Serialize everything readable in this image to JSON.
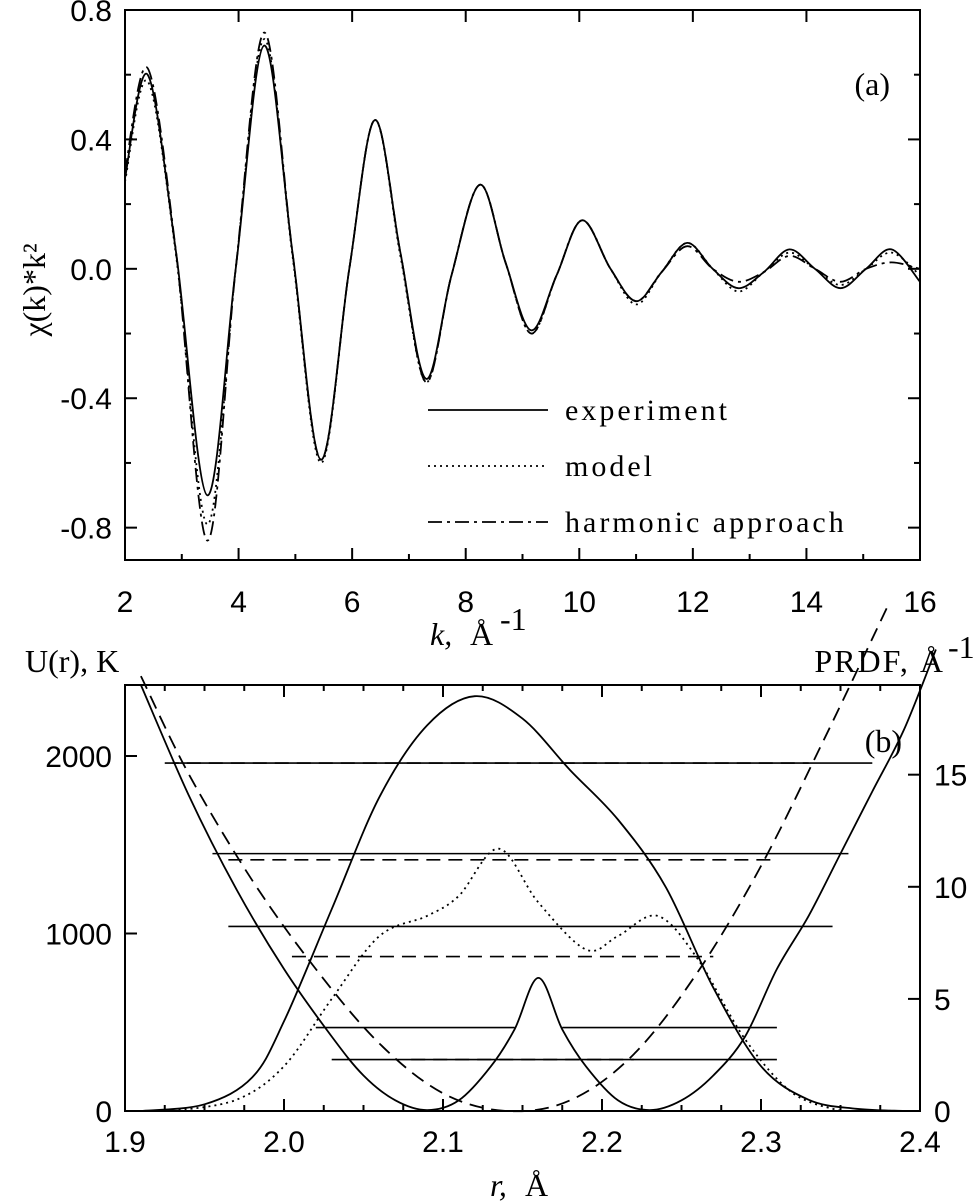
{
  "chart_data": [
    {
      "type": "line",
      "panel_label": "(a)",
      "xlabel_var": "k,",
      "xlabel_unit": "Å",
      "xlabel_exp": "-1",
      "ylabel": "χ(k)*k²",
      "xlim": [
        2,
        16
      ],
      "ylim": [
        -0.9,
        0.8
      ],
      "x_ticks": [
        "2",
        "4",
        "6",
        "8",
        "10",
        "12",
        "14",
        "16"
      ],
      "y_ticks": [
        "0.8",
        "0.4",
        "0.0",
        "-0.4",
        "-0.8"
      ],
      "legend_position": "bottom-right",
      "series": [
        {
          "name": "experiment",
          "dash": "solid",
          "x": [
            2.0,
            2.4,
            2.9,
            3.45,
            3.95,
            4.45,
            4.95,
            5.45,
            5.95,
            6.4,
            6.85,
            7.3,
            7.75,
            8.25,
            8.7,
            9.15,
            9.6,
            10.05,
            10.55,
            11.0,
            11.45,
            11.9,
            12.35,
            12.8,
            13.25,
            13.7,
            14.15,
            14.6,
            15.05,
            15.5,
            16.0
          ],
          "y": [
            0.28,
            0.6,
            0.05,
            -0.7,
            0.0,
            0.69,
            0.05,
            -0.59,
            0.0,
            0.46,
            0.05,
            -0.34,
            -0.02,
            0.26,
            0.02,
            -0.19,
            -0.02,
            0.15,
            0.0,
            -0.1,
            -0.01,
            0.08,
            0.0,
            -0.06,
            -0.01,
            0.06,
            0.0,
            -0.06,
            0.0,
            0.06,
            -0.04
          ]
        },
        {
          "name": "model",
          "dash": "dotted",
          "x": [
            2.0,
            2.4,
            2.9,
            3.45,
            3.95,
            4.45,
            4.95,
            5.45,
            5.95,
            6.4,
            6.85,
            7.3,
            7.75,
            8.25,
            8.7,
            9.15,
            9.6,
            10.05,
            10.55,
            11.0,
            11.45,
            11.9,
            12.35,
            12.8,
            13.25,
            13.7,
            14.15,
            14.6,
            15.05,
            15.5,
            16.0
          ],
          "y": [
            0.27,
            0.58,
            0.04,
            -0.79,
            0.0,
            0.71,
            0.04,
            -0.6,
            0.0,
            0.46,
            0.04,
            -0.35,
            -0.02,
            0.26,
            0.02,
            -0.2,
            -0.02,
            0.15,
            0.0,
            -0.11,
            -0.01,
            0.08,
            0.0,
            -0.07,
            -0.01,
            0.05,
            0.0,
            -0.05,
            0.0,
            0.05,
            -0.02
          ]
        },
        {
          "name": "harmonic approach",
          "dash": "dashdot",
          "x": [
            2.0,
            2.4,
            2.9,
            3.45,
            3.95,
            4.45,
            4.95,
            5.45,
            5.95,
            6.4,
            6.85,
            7.3,
            7.75,
            8.25,
            8.7,
            9.15,
            9.6,
            10.05,
            10.55,
            11.0,
            11.45,
            11.9,
            12.35,
            12.8,
            13.25,
            13.7,
            14.15,
            14.6,
            15.05,
            15.5,
            16.0
          ],
          "y": [
            0.3,
            0.62,
            0.05,
            -0.84,
            0.0,
            0.73,
            0.05,
            -0.59,
            0.0,
            0.46,
            0.05,
            -0.35,
            -0.02,
            0.26,
            0.02,
            -0.2,
            -0.02,
            0.15,
            0.0,
            -0.1,
            -0.01,
            0.07,
            0.0,
            -0.04,
            -0.01,
            0.04,
            0.0,
            -0.04,
            0.0,
            0.02,
            0.0
          ]
        }
      ]
    },
    {
      "type": "line",
      "panel_label": "(b)",
      "xlabel_var": "r,",
      "xlabel_unit": "Å",
      "ylabel_left": "U(r), K",
      "ylabel_right": "PRDF, Å",
      "ylabel_right_exp": "-1",
      "xlim": [
        1.9,
        2.4
      ],
      "ylim_left": [
        0,
        2400
      ],
      "ylim_right": [
        0,
        19
      ],
      "x_ticks": [
        "1.9",
        "2.0",
        "2.1",
        "2.2",
        "2.3",
        "2.4"
      ],
      "y_ticks_left": [
        "0",
        "1000",
        "2000"
      ],
      "y_ticks_right": [
        "0",
        "5",
        "10",
        "15"
      ],
      "series": [
        {
          "name": "",
          "axis": "left",
          "dash": "solid",
          "x": [
            1.91,
            1.94,
            1.97,
            2.0,
            2.03,
            2.05,
            2.07,
            2.09,
            2.11,
            2.13,
            2.145,
            2.16,
            2.175,
            2.19,
            2.21,
            2.23,
            2.25,
            2.27,
            2.29,
            2.31,
            2.33,
            2.35,
            2.37,
            2.39,
            2.41
          ],
          "y": [
            2400,
            1780,
            1250,
            800,
            420,
            200,
            60,
            5,
            60,
            250,
            460,
            750,
            460,
            250,
            60,
            5,
            60,
            200,
            420,
            800,
            1100,
            1450,
            1800,
            2150,
            2600
          ]
        },
        {
          "name": "",
          "axis": "left",
          "dash": "dashed",
          "x": [
            1.91,
            1.94,
            1.98,
            2.02,
            2.06,
            2.1,
            2.14,
            2.18,
            2.22,
            2.26,
            2.3,
            2.34,
            2.38
          ],
          "y": [
            2450,
            1900,
            1300,
            800,
            380,
            100,
            0,
            60,
            320,
            780,
            1380,
            2100,
            2850
          ]
        },
        {
          "name": "",
          "axis": "right",
          "dash": "solid",
          "x": [
            1.91,
            1.95,
            1.98,
            2.0,
            2.03,
            2.06,
            2.09,
            2.12,
            2.15,
            2.18,
            2.21,
            2.24,
            2.27,
            2.3,
            2.33,
            2.36,
            2.39
          ],
          "y": [
            0,
            0.3,
            1.5,
            4.0,
            9.0,
            14.0,
            17.2,
            18.5,
            17.5,
            15.2,
            13.0,
            10.0,
            5.5,
            2.0,
            0.5,
            0.1,
            0
          ]
        },
        {
          "name": "",
          "axis": "right",
          "dash": "dotted",
          "x": [
            1.93,
            1.97,
            2.0,
            2.03,
            2.06,
            2.09,
            2.11,
            2.135,
            2.16,
            2.19,
            2.21,
            2.235,
            2.26,
            2.29,
            2.32,
            2.35
          ],
          "y": [
            0,
            0.5,
            2.0,
            5.0,
            7.8,
            8.7,
            9.6,
            11.7,
            9.3,
            7.2,
            7.8,
            8.7,
            6.8,
            3.2,
            0.8,
            0
          ]
        }
      ],
      "energy_levels": [
        {
          "style": "solid",
          "value": 1960,
          "x": [
            1.93,
            2.37
          ]
        },
        {
          "style": "dashed",
          "value": 1960,
          "x": [
            1.925,
            2.33
          ]
        },
        {
          "style": "solid",
          "value": 1450,
          "x": [
            1.955,
            2.355
          ]
        },
        {
          "style": "dashed",
          "value": 1415,
          "x": [
            1.965,
            2.31
          ]
        },
        {
          "style": "solid",
          "value": 1040,
          "x": [
            1.965,
            2.345
          ]
        },
        {
          "style": "dashed",
          "value": 870,
          "x": [
            2.005,
            2.27
          ]
        },
        {
          "style": "solid",
          "value": 470,
          "x": [
            2.02,
            2.145
          ]
        },
        {
          "style": "solid",
          "value": 470,
          "x": [
            2.175,
            2.31
          ]
        },
        {
          "style": "solid",
          "value": 290,
          "x": [
            2.03,
            2.31
          ]
        },
        {
          "style": "dashed",
          "value": 290,
          "x": [
            2.08,
            2.22
          ]
        }
      ]
    }
  ]
}
